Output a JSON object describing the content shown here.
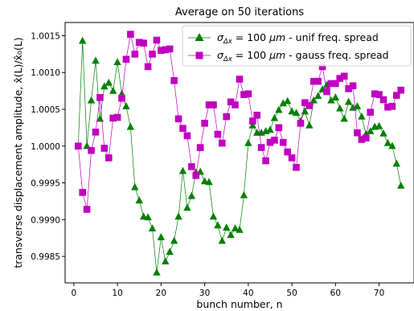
{
  "chart_data": {
    "type": "line",
    "title": "Average on 50 iterations",
    "xlabel": "bunch number, n",
    "ylabel": "transverse displacement amplitude, x̂(L)/x̂₀(L)",
    "xlim": [
      -2,
      78
    ],
    "ylim": [
      0.99814,
      1.00168
    ],
    "xticks": [
      0,
      10,
      20,
      30,
      40,
      50,
      60,
      70
    ],
    "yticks": [
      0.9985,
      0.999,
      0.9995,
      1.0,
      1.0005,
      1.001,
      1.0015
    ],
    "ytick_labels": [
      "0.9985",
      "0.9990",
      "0.9995",
      "1.0000",
      "1.0005",
      "1.0010",
      "1.0015"
    ],
    "grid": false,
    "legend_position": "top-right",
    "series": [
      {
        "name_parts": [
          "σ",
          "Δx",
          " = 100 ",
          "μm",
          " - unif freq. spread"
        ],
        "color": "#008000",
        "marker": "triangle",
        "x": [
          1,
          2,
          3,
          4,
          5,
          6,
          7,
          8,
          9,
          10,
          11,
          12,
          13,
          14,
          15,
          16,
          17,
          18,
          19,
          20,
          21,
          22,
          23,
          24,
          25,
          26,
          27,
          28,
          29,
          30,
          31,
          32,
          33,
          34,
          35,
          36,
          37,
          38,
          39,
          40,
          41,
          42,
          43,
          44,
          45,
          46,
          47,
          48,
          49,
          50,
          51,
          52,
          53,
          54,
          55,
          56,
          57,
          58,
          59,
          60,
          61,
          62,
          63,
          64,
          65,
          66,
          67,
          68,
          69,
          70,
          71,
          72,
          73,
          74,
          75
        ],
        "values": [
          1.0,
          1.00143,
          1.0,
          1.00062,
          1.00116,
          1.00037,
          1.00081,
          1.00086,
          1.00075,
          1.00114,
          1.00071,
          1.00054,
          1.00026,
          0.99944,
          0.99926,
          0.99904,
          0.99903,
          0.99888,
          0.99828,
          0.99876,
          0.99843,
          0.99856,
          0.99871,
          0.99904,
          0.99966,
          0.99916,
          0.99932,
          0.99964,
          0.99965,
          0.99952,
          0.99951,
          0.99904,
          0.99892,
          0.99871,
          0.99889,
          0.99879,
          0.99888,
          0.99886,
          0.99933,
          1.00004,
          1.00028,
          1.00018,
          1.00018,
          1.0002,
          1.00022,
          1.00038,
          1.00049,
          1.00058,
          1.00061,
          1.00047,
          1.00045,
          1.00034,
          1.00047,
          1.00028,
          1.00062,
          1.00068,
          1.00077,
          1.00083,
          1.00062,
          1.00066,
          1.00051,
          1.00037,
          1.0006,
          1.00052,
          1.00054,
          1.0004,
          1.00016,
          1.0002,
          1.00026,
          1.00027,
          1.00017,
          1.00004,
          1.0,
          0.99976,
          0.99946
        ]
      },
      {
        "name_parts": [
          "σ",
          "Δx",
          " = 100 ",
          "μm",
          " - gauss freq. spread"
        ],
        "color": "#c000c0",
        "marker": "square",
        "x": [
          1,
          2,
          3,
          4,
          5,
          6,
          7,
          8,
          9,
          10,
          11,
          12,
          13,
          14,
          15,
          16,
          17,
          18,
          19,
          20,
          21,
          22,
          23,
          24,
          25,
          26,
          27,
          28,
          29,
          30,
          31,
          32,
          33,
          34,
          35,
          36,
          37,
          38,
          39,
          40,
          41,
          42,
          43,
          44,
          45,
          46,
          47,
          48,
          49,
          50,
          51,
          52,
          53,
          54,
          55,
          56,
          57,
          58,
          59,
          60,
          61,
          62,
          63,
          64,
          65,
          66,
          67,
          68,
          69,
          70,
          71,
          72,
          73,
          74,
          75
        ],
        "values": [
          1.0,
          0.99937,
          0.99914,
          0.99994,
          1.00019,
          1.00066,
          0.99997,
          0.99984,
          1.00038,
          1.00039,
          1.00065,
          1.00118,
          1.00152,
          1.00125,
          1.00141,
          1.0014,
          1.00108,
          1.00125,
          1.00144,
          1.0013,
          1.00131,
          1.00132,
          1.00089,
          1.00037,
          1.00024,
          1.00014,
          0.99972,
          0.9996,
          0.99998,
          1.00031,
          1.00056,
          1.00056,
          1.00016,
          1.00004,
          1.0004,
          1.0006,
          1.00056,
          1.00091,
          1.0007,
          1.00071,
          1.00034,
          1.00042,
          0.99998,
          0.9998,
          1.00005,
          1.00008,
          1.00025,
          1.00005,
          0.99992,
          0.99984,
          0.99971,
          1.00031,
          1.00059,
          1.00055,
          1.00088,
          1.00088,
          1.00108,
          1.00074,
          1.00085,
          1.00085,
          1.00092,
          1.00095,
          1.00078,
          1.00082,
          1.00018,
          1.00009,
          1.00011,
          1.00046,
          1.00071,
          1.0007,
          1.00063,
          1.00053,
          1.00054,
          1.00069,
          1.00076
        ]
      }
    ]
  }
}
